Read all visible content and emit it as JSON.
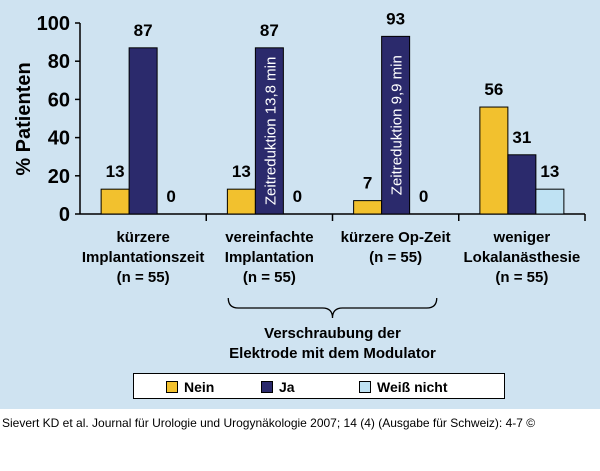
{
  "chart_data": {
    "type": "bar",
    "ylabel": "% Patienten",
    "ylim": [
      0,
      100
    ],
    "yticks": [
      0,
      20,
      40,
      60,
      80,
      100
    ],
    "grid": false,
    "legend_position": "bottom",
    "categories": [
      [
        "kürzere",
        "Implantationszeit",
        "(n = 55)"
      ],
      [
        "vereinfachte",
        "Implantation",
        "(n = 55)"
      ],
      [
        "kürzere Op-Zeit",
        "(n = 55)"
      ],
      [
        "weniger",
        "Lokalanästhesie",
        "(n = 55)"
      ]
    ],
    "series": [
      {
        "name": "Nein",
        "color": "#f2c12e",
        "values": [
          13,
          13,
          7,
          56
        ]
      },
      {
        "name": "Ja",
        "color": "#2b2a6c",
        "values": [
          87,
          87,
          93,
          31
        ]
      },
      {
        "name": "Weiß nicht",
        "color": "#bfe2f3",
        "values": [
          0,
          0,
          0,
          13
        ]
      }
    ],
    "bar_annotations": [
      {
        "category": 1,
        "series": 1,
        "text": "Zeitreduktion 13,8 min"
      },
      {
        "category": 2,
        "series": 1,
        "text": "Zeitreduktion 9,9 min"
      }
    ],
    "group_annotation": {
      "categories": [
        1,
        2
      ],
      "lines": [
        "Verschraubung der",
        "Elektrode mit dem Modulator"
      ]
    }
  },
  "citation": "Sievert KD et al. Journal für Urologie und Urogynäkologie 2007; 14 (4) (Ausgabe für Schweiz): 4-7 ©"
}
